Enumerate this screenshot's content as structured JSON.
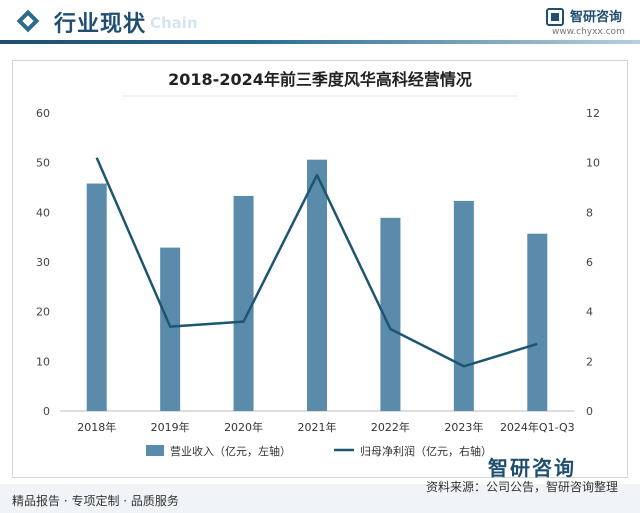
{
  "header": {
    "title": "行业现状",
    "subtitle_en": "Chain",
    "brand_name": "智研咨询",
    "brand_url": "www.chyxx.com"
  },
  "chart_data": {
    "type": "bar",
    "title": "2018-2024年前三季度风华高科经营情况",
    "categories": [
      "2018年",
      "2019年",
      "2020年",
      "2021年",
      "2022年",
      "2023年",
      "2024年Q1-Q3"
    ],
    "series": [
      {
        "name": "营业收入（亿元，左轴）",
        "type": "bar",
        "axis": "left",
        "color": "#5b8bab",
        "values": [
          45.8,
          32.9,
          43.3,
          50.6,
          38.9,
          42.3,
          35.7
        ]
      },
      {
        "name": "归母净利润（亿元，右轴）",
        "type": "line",
        "axis": "right",
        "color": "#1d5670",
        "values": [
          10.2,
          3.4,
          3.6,
          9.5,
          3.3,
          1.8,
          2.7
        ]
      }
    ],
    "y_left": {
      "min": 0,
      "max": 60,
      "ticks": [
        0,
        10,
        20,
        30,
        40,
        50,
        60
      ]
    },
    "y_right": {
      "min": 0,
      "max": 12,
      "ticks": [
        0,
        2,
        4,
        6,
        8,
        10,
        12
      ]
    },
    "legend_position": "bottom-center"
  },
  "footer": {
    "left_text": "精品报告 · 专项定制 · 品质服务",
    "source": "资料来源：公司公告，智研咨询整理",
    "brand": "智研咨询"
  }
}
